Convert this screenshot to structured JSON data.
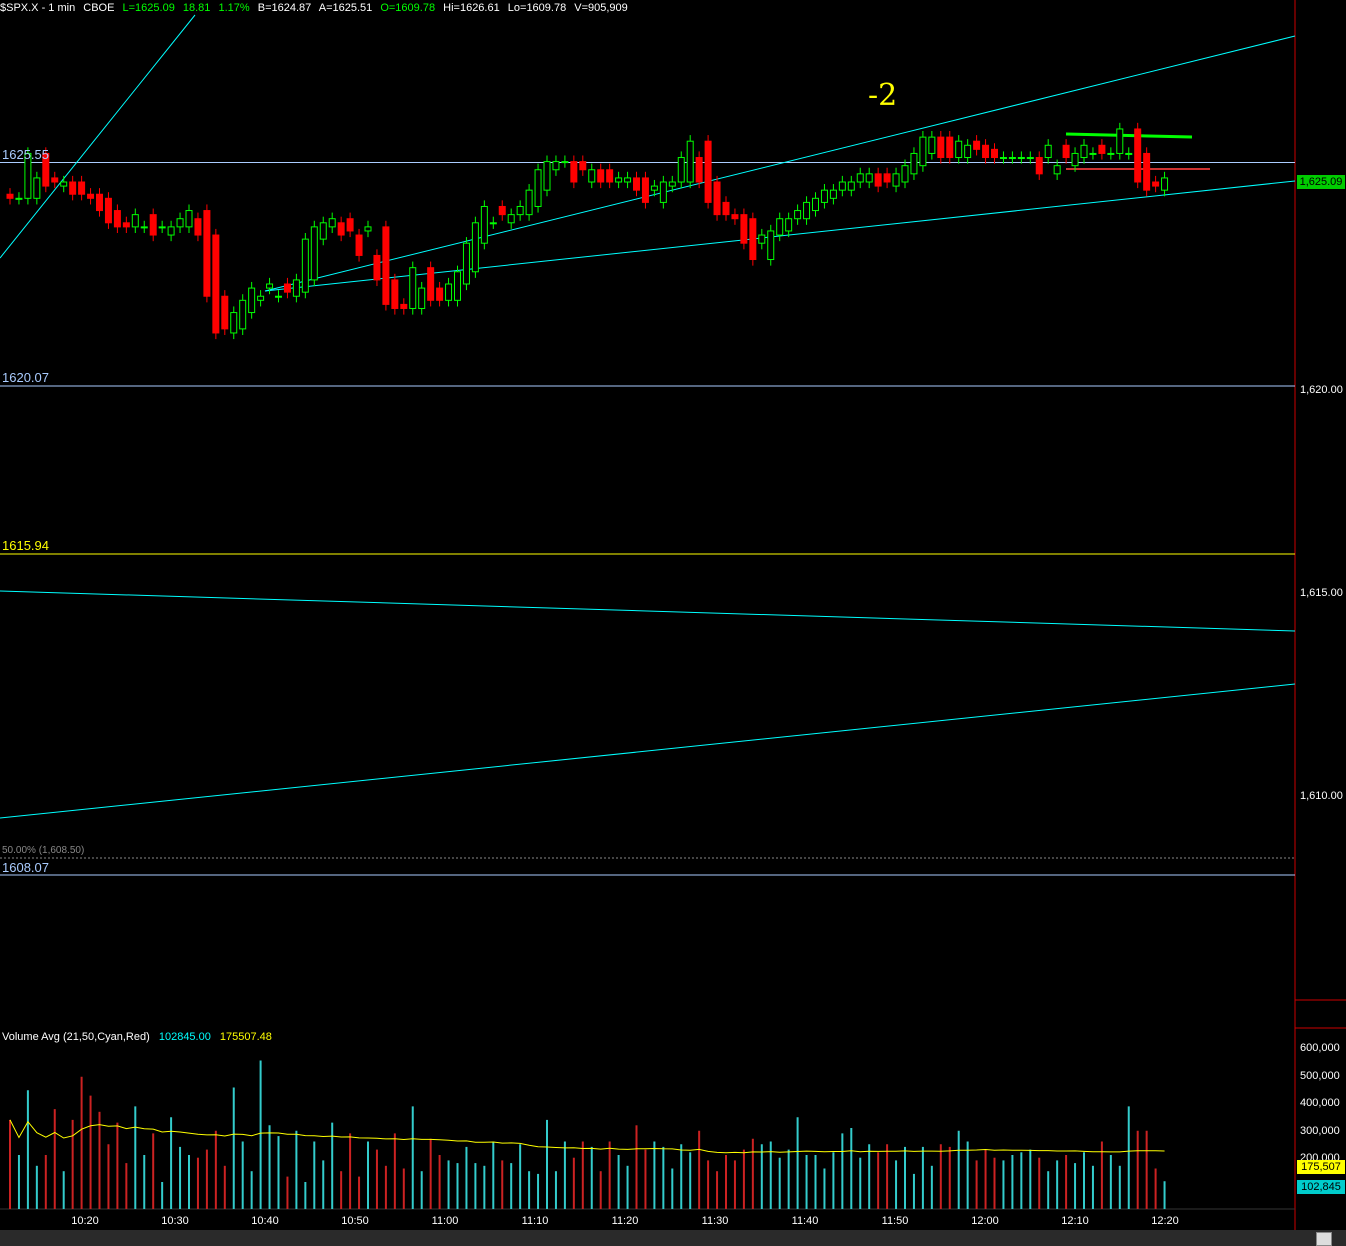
{
  "header": {
    "symbol": "$SPX.X - 1 min",
    "exchange": "CBOE",
    "last": "L=1625.09",
    "change": "18.81",
    "pct": "1.17%",
    "bid": "B=1624.87",
    "ask": "A=1625.51",
    "open": "O=1609.78",
    "high": "Hi=1626.61",
    "low": "Lo=1609.78",
    "volume": "V=905,909"
  },
  "levels": [
    {
      "label": "1625.55",
      "value": 1625.55,
      "color": "#aaccff"
    },
    {
      "label": "1620.07",
      "value": 1620.07,
      "color": "#aaccff"
    },
    {
      "label": "1615.94",
      "value": 1615.94,
      "color": "#ffff00"
    },
    {
      "label": "1608.07",
      "value": 1608.07,
      "color": "#aaccff"
    }
  ],
  "fib_label": "50.00% (1,608.50)",
  "annotation": "-2",
  "price_axis": [
    "1,620.00",
    "1,615.00",
    "1,610.00"
  ],
  "last_price_tag": "1,625.09",
  "volume_indicator": {
    "title": "Volume Avg (21,50,Cyan,Red)",
    "value1": "102845.00",
    "value2": "175507.48",
    "axis": [
      "600,000",
      "500,000",
      "400,000",
      "300,000",
      "200,000"
    ],
    "tag_avg": "175,507",
    "tag_vol": "102,845"
  },
  "time_labels": [
    "10:20",
    "10:30",
    "10:40",
    "10:50",
    "11:00",
    "11:10",
    "11:20",
    "11:30",
    "11:40",
    "11:50",
    "12:00",
    "12:10",
    "12:20"
  ],
  "colors": {
    "up": "#00ff00",
    "down": "#ff0000",
    "trend": "#00ffff",
    "avg": "#ffff00"
  },
  "chart_data": {
    "type": "candlestick",
    "title": "$SPX.X - 1 min",
    "ylim": [
      1605.5,
      1628.5
    ],
    "x": [
      "10:12",
      "10:13",
      "10:14",
      "10:15",
      "10:16",
      "10:17",
      "10:18",
      "10:19",
      "10:20",
      "10:21",
      "10:22",
      "10:23",
      "10:24",
      "10:25",
      "10:26",
      "10:27",
      "10:28",
      "10:29",
      "10:30",
      "10:31",
      "10:32",
      "10:33",
      "10:34",
      "10:35",
      "10:36",
      "10:37",
      "10:38",
      "10:39",
      "10:40",
      "10:41",
      "10:42",
      "10:43",
      "10:44",
      "10:45",
      "10:46",
      "10:47",
      "10:48",
      "10:49",
      "10:50",
      "10:51",
      "10:52",
      "10:53",
      "10:54",
      "10:55",
      "10:56",
      "10:57",
      "10:58",
      "10:59",
      "11:00",
      "11:01",
      "11:02",
      "11:03",
      "11:04",
      "11:05",
      "11:06",
      "11:07",
      "11:08",
      "11:09",
      "11:10",
      "11:11",
      "11:12",
      "11:13",
      "11:14",
      "11:15",
      "11:16",
      "11:17",
      "11:18",
      "11:19",
      "11:20",
      "11:21",
      "11:22",
      "11:23",
      "11:24",
      "11:25",
      "11:26",
      "11:27",
      "11:28",
      "11:29",
      "11:30",
      "11:31",
      "11:32",
      "11:33",
      "11:34",
      "11:35",
      "11:36",
      "11:37",
      "11:38",
      "11:39",
      "11:40",
      "11:41",
      "11:42",
      "11:43",
      "11:44",
      "11:45",
      "11:46",
      "11:47",
      "11:48",
      "11:49",
      "11:50",
      "11:51",
      "11:52",
      "11:53",
      "11:54",
      "11:55",
      "11:56",
      "11:57",
      "11:58",
      "11:59",
      "12:00",
      "12:01",
      "12:02",
      "12:03",
      "12:04",
      "12:05",
      "12:06",
      "12:07",
      "12:08",
      "12:09",
      "12:10",
      "12:11",
      "12:12",
      "12:13",
      "12:14",
      "12:15",
      "12:16",
      "12:17",
      "12:18",
      "12:19",
      "12:20",
      "12:21"
    ],
    "open": [
      1624.7,
      1624.6,
      1624.6,
      1624.6,
      1625.7,
      1625.1,
      1624.9,
      1625.0,
      1625.0,
      1624.7,
      1624.7,
      1624.6,
      1624.3,
      1624.0,
      1623.9,
      1623.9,
      1624.2,
      1623.9,
      1623.7,
      1623.9,
      1623.9,
      1624.1,
      1624.3,
      1623.7,
      1622.2,
      1621.3,
      1621.4,
      1621.8,
      1622.1,
      1622.4,
      1622.2,
      1622.5,
      1622.2,
      1622.3,
      1622.6,
      1623.6,
      1623.9,
      1624.0,
      1624.1,
      1623.7,
      1623.8,
      1623.2,
      1623.9,
      1622.6,
      1622.0,
      1621.9,
      1621.9,
      1622.9,
      1622.4,
      1622.1,
      1622.1,
      1622.5,
      1622.8,
      1623.5,
      1624.0,
      1624.4,
      1624.0,
      1624.2,
      1624.2,
      1624.4,
      1624.8,
      1625.3,
      1625.5,
      1625.5,
      1625.5,
      1625.0,
      1625.3,
      1625.3,
      1625.0,
      1625.0,
      1625.1,
      1625.1,
      1624.8,
      1624.5,
      1624.9,
      1625.0,
      1625.0,
      1625.6,
      1626.0,
      1625.0,
      1624.5,
      1624.2,
      1624.2,
      1624.1,
      1623.5,
      1623.1,
      1623.7,
      1623.8,
      1624.1,
      1624.1,
      1624.3,
      1624.5,
      1624.6,
      1624.8,
      1624.8,
      1625.0,
      1625.0,
      1625.2,
      1625.2,
      1624.9,
      1625.0,
      1625.2,
      1625.4,
      1625.7,
      1626.1,
      1626.1,
      1625.6,
      1625.6,
      1626.0,
      1625.9,
      1625.8,
      1625.6,
      1625.6,
      1625.6,
      1625.6,
      1625.6,
      1625.6,
      1625.2,
      1625.9,
      1625.4,
      1625.6,
      1625.7,
      1625.9,
      1625.7,
      1625.7,
      1625.7,
      1626.3,
      1625.7,
      1625.0,
      1624.8
    ],
    "close": [
      1624.6,
      1624.6,
      1625.7,
      1625.1,
      1624.9,
      1625.0,
      1625.0,
      1624.7,
      1624.7,
      1624.6,
      1624.3,
      1624.0,
      1623.9,
      1623.9,
      1624.2,
      1623.9,
      1623.7,
      1623.9,
      1623.9,
      1624.1,
      1624.3,
      1623.7,
      1622.2,
      1621.3,
      1621.4,
      1621.8,
      1622.1,
      1622.4,
      1622.2,
      1622.5,
      1622.2,
      1622.3,
      1622.6,
      1623.6,
      1623.9,
      1624.0,
      1624.1,
      1623.7,
      1623.8,
      1623.2,
      1623.9,
      1622.6,
      1622.0,
      1621.9,
      1621.9,
      1622.9,
      1622.4,
      1622.1,
      1622.1,
      1622.5,
      1622.8,
      1623.5,
      1624.0,
      1624.4,
      1624.0,
      1624.2,
      1624.2,
      1624.4,
      1624.8,
      1625.3,
      1625.5,
      1625.5,
      1625.5,
      1625.0,
      1625.3,
      1625.3,
      1625.0,
      1625.0,
      1625.1,
      1625.1,
      1624.8,
      1624.5,
      1624.9,
      1625.0,
      1625.0,
      1625.6,
      1626.0,
      1625.0,
      1624.5,
      1624.2,
      1624.2,
      1624.1,
      1623.5,
      1623.1,
      1623.7,
      1623.8,
      1624.1,
      1624.1,
      1624.3,
      1624.5,
      1624.6,
      1624.8,
      1624.8,
      1625.0,
      1625.0,
      1625.2,
      1625.2,
      1624.9,
      1625.0,
      1625.2,
      1625.4,
      1625.7,
      1626.1,
      1626.1,
      1625.6,
      1625.6,
      1626.0,
      1625.9,
      1625.8,
      1625.6,
      1625.6,
      1625.6,
      1625.6,
      1625.6,
      1625.6,
      1625.2,
      1625.9,
      1625.4,
      1625.6,
      1625.7,
      1625.9,
      1625.7,
      1625.7,
      1625.7,
      1626.3,
      1625.7,
      1625.0,
      1624.8,
      1624.9,
      1625.1
    ],
    "volume": [
      330000,
      200000,
      440000,
      160000,
      200000,
      370000,
      140000,
      330000,
      490000,
      420000,
      360000,
      240000,
      320000,
      170000,
      380000,
      200000,
      280000,
      100000,
      340000,
      230000,
      200000,
      190000,
      220000,
      290000,
      160000,
      450000,
      250000,
      140000,
      550000,
      310000,
      270000,
      120000,
      290000,
      100000,
      250000,
      180000,
      320000,
      140000,
      280000,
      120000,
      250000,
      220000,
      160000,
      280000,
      150000,
      380000,
      140000,
      260000,
      200000,
      180000,
      170000,
      230000,
      170000,
      160000,
      250000,
      180000,
      170000,
      240000,
      140000,
      130000,
      330000,
      140000,
      250000,
      190000,
      250000,
      230000,
      140000,
      250000,
      200000,
      160000,
      310000,
      220000,
      250000,
      230000,
      150000,
      240000,
      210000,
      290000,
      180000,
      140000,
      200000,
      180000,
      220000,
      260000,
      240000,
      250000,
      190000,
      220000,
      340000,
      200000,
      200000,
      150000,
      210000,
      280000,
      300000,
      190000,
      240000,
      210000,
      240000,
      180000,
      230000,
      130000,
      230000,
      160000,
      240000,
      230000,
      290000,
      250000,
      180000,
      220000,
      190000,
      180000,
      200000,
      210000,
      220000,
      190000,
      140000,
      180000,
      200000,
      170000,
      210000,
      160000,
      250000,
      200000,
      160000,
      380000,
      290000,
      290000,
      150000,
      102845
    ]
  }
}
